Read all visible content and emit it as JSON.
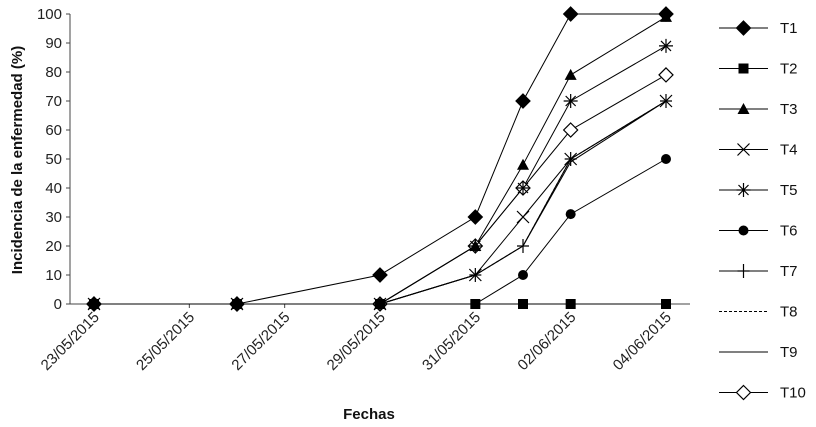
{
  "chart_data": {
    "type": "line",
    "xlabel": "Fechas",
    "ylabel": "Incidencia de la enfermedad (%)",
    "ylim": [
      0,
      100
    ],
    "yticks": [
      0,
      10,
      20,
      30,
      40,
      50,
      60,
      70,
      80,
      90,
      100
    ],
    "xlim": [
      "2015-05-23",
      "2015-06-04"
    ],
    "xtick_labels": [
      "23/05/2015",
      "25/05/2015",
      "27/05/2015",
      "29/05/2015",
      "31/05/2015",
      "02/06/2015",
      "04/06/2015"
    ],
    "x": [
      "2015-05-23",
      "2015-05-26",
      "2015-05-29",
      "2015-05-31",
      "2015-06-01",
      "2015-06-02",
      "2015-06-04"
    ],
    "grid": false,
    "legend_position": "right",
    "series": [
      {
        "name": "T1",
        "marker": "diamond-filled",
        "values": [
          0,
          0,
          10,
          30,
          70,
          100,
          100
        ]
      },
      {
        "name": "T2",
        "marker": "square-filled",
        "values": [
          0,
          0,
          0,
          0,
          0,
          0,
          0
        ]
      },
      {
        "name": "T3",
        "marker": "triangle-filled",
        "values": [
          0,
          0,
          0,
          20,
          48,
          79,
          99
        ]
      },
      {
        "name": "T4",
        "marker": "x",
        "values": [
          0,
          0,
          0,
          10,
          30,
          50,
          70
        ]
      },
      {
        "name": "T5",
        "marker": "asterisk",
        "values": [
          0,
          0,
          0,
          20,
          40,
          70,
          89
        ]
      },
      {
        "name": "T6",
        "marker": "circle-filled",
        "values": [
          0,
          0,
          0,
          0,
          10,
          31,
          50
        ]
      },
      {
        "name": "T7",
        "marker": "plus",
        "values": [
          0,
          0,
          0,
          10,
          20,
          50,
          70
        ]
      },
      {
        "name": "T8",
        "marker": "none-dashed",
        "values": [
          0,
          0,
          0,
          10,
          20,
          50,
          70
        ]
      },
      {
        "name": "T9",
        "marker": "none",
        "values": [
          0,
          0,
          0,
          10,
          20,
          49,
          70
        ]
      },
      {
        "name": "T10",
        "marker": "diamond-open",
        "values": [
          0,
          0,
          0,
          20,
          40,
          60,
          79
        ]
      }
    ],
    "series_color": "#000000"
  }
}
